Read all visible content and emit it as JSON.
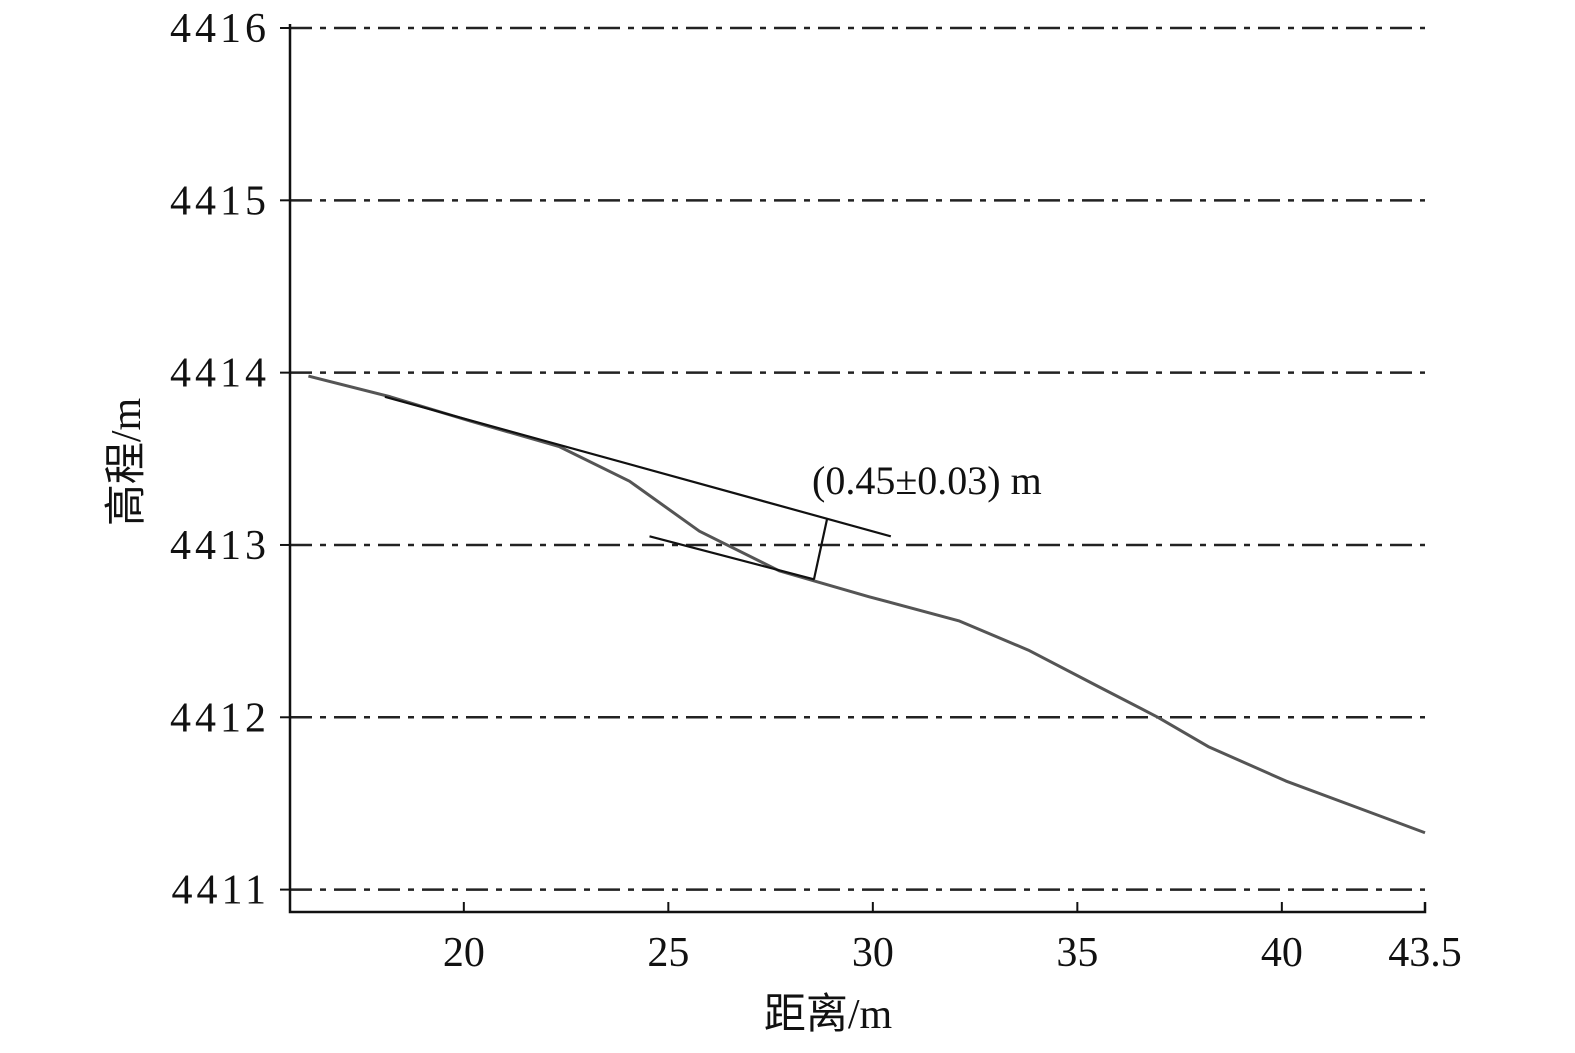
{
  "chart_data": {
    "type": "line",
    "x_label": "距离/m",
    "y_label": "高程/m",
    "annotation": "(0.45±0.03) m",
    "xlim": [
      15.75,
      43.5
    ],
    "ylim": [
      4410.87,
      4416
    ],
    "xticks": [
      20,
      25,
      30,
      35,
      40,
      43.5
    ],
    "yticks": [
      4411,
      4412,
      4413,
      4414,
      4415,
      4416
    ],
    "grid": true,
    "series": [
      {
        "color": "#555555",
        "x": [
          16.2,
          18.2,
          20.15,
          22.34,
          24.05,
          25.76,
          27.71,
          29.9,
          32.1,
          33.8,
          35.5,
          36.97,
          38.2,
          40.1,
          41.8,
          43.5
        ],
        "values": [
          4413.98,
          4413.86,
          4413.72,
          4413.57,
          4413.37,
          4413.08,
          4412.85,
          4412.7,
          4412.56,
          4412.39,
          4412.18,
          4412.0,
          4411.83,
          4411.63,
          4411.48,
          4411.33
        ]
      },
      {
        "color": "#111111",
        "x": [
          18.07,
          30.44
        ],
        "values": [
          4413.86,
          4413.05
        ]
      },
      {
        "color": "#111111",
        "x": [
          24.54,
          28.57
        ],
        "values": [
          4413.05,
          4412.8
        ]
      },
      {
        "color": "#111111",
        "x": [
          28.88,
          28.56
        ],
        "values": [
          4413.15,
          4412.8
        ]
      }
    ]
  }
}
